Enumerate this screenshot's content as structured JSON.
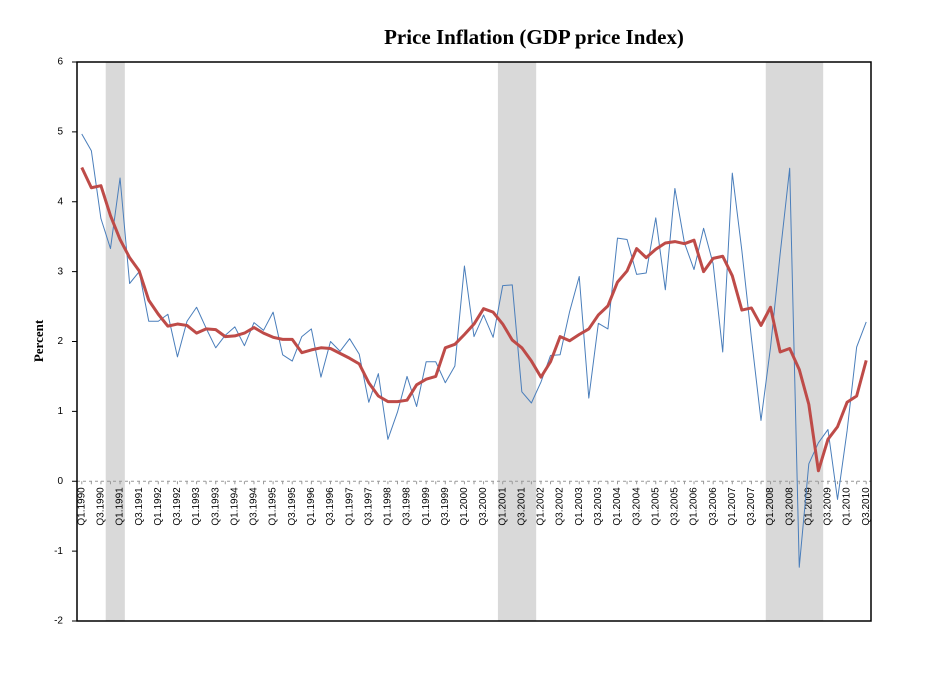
{
  "chart_data": {
    "type": "line",
    "title": "Price Inflation (GDP price Index)",
    "y_label": "Percent",
    "categories": [
      "Q1.1990",
      null,
      "Q3.1990",
      null,
      "Q1.1991",
      null,
      "Q3.1991",
      null,
      "Q1.1992",
      null,
      "Q3.1992",
      null,
      "Q1.1993",
      null,
      "Q3.1993",
      null,
      "Q1.1994",
      null,
      "Q3.1994",
      null,
      "Q1.1995",
      null,
      "Q3.1995",
      null,
      "Q1.1996",
      null,
      "Q3.1996",
      null,
      "Q1.1997",
      null,
      "Q3.1997",
      null,
      "Q1.1998",
      null,
      "Q3.1998",
      null,
      "Q1.1999",
      null,
      "Q3.1999",
      null,
      "Q1.2000",
      null,
      "Q3.2000",
      null,
      "Q1.2001",
      null,
      "Q3.2001",
      null,
      "Q1.2002",
      null,
      "Q3.2002",
      null,
      "Q1.2003",
      null,
      "Q3.2003",
      null,
      "Q1.2004",
      null,
      "Q3.2004",
      null,
      "Q1.2005",
      null,
      "Q3.2005",
      null,
      "Q1.2006",
      null,
      "Q3.2006",
      null,
      "Q1.2007",
      null,
      "Q3.2007",
      null,
      "Q1.2008",
      null,
      "Q3.2008",
      null,
      "Q1.2009",
      null,
      "Q3.2009",
      null,
      "Q1.2010",
      null,
      "Q3.2010"
    ],
    "series": [
      {
        "color": "#4a7ebb",
        "width": 1,
        "values": [
          4.97,
          4.73,
          3.76,
          3.33,
          4.34,
          2.83,
          3.0,
          2.29,
          2.29,
          2.39,
          1.78,
          2.29,
          2.49,
          2.19,
          1.91,
          2.09,
          2.21,
          1.94,
          2.27,
          2.16,
          2.42,
          1.81,
          1.72,
          2.07,
          2.18,
          1.49,
          2.0,
          1.86,
          2.04,
          1.82,
          1.13,
          1.54,
          0.6,
          0.99,
          1.5,
          1.07,
          1.71,
          1.71,
          1.41,
          1.65,
          3.08,
          2.07,
          2.38,
          2.06,
          2.8,
          2.81,
          1.28,
          1.12,
          1.42,
          1.8,
          1.81,
          2.43,
          2.93,
          1.19,
          2.26,
          2.18,
          3.48,
          3.46,
          2.96,
          2.98,
          3.77,
          2.74,
          4.19,
          3.41,
          3.03,
          3.62,
          3.11,
          1.85,
          4.41,
          3.3,
          2.05,
          0.87,
          1.92,
          3.25,
          4.48,
          -1.23,
          0.25,
          0.55,
          0.74,
          -0.26,
          0.72,
          1.92,
          2.28
        ]
      },
      {
        "color": "#be4b48",
        "width": 3,
        "values": [
          4.49,
          4.2,
          4.23,
          3.8,
          3.46,
          3.2,
          3.01,
          2.59,
          2.39,
          2.22,
          2.25,
          2.23,
          2.12,
          2.18,
          2.17,
          2.07,
          2.08,
          2.12,
          2.2,
          2.12,
          2.06,
          2.03,
          2.03,
          1.84,
          1.88,
          1.91,
          1.9,
          1.83,
          1.76,
          1.68,
          1.41,
          1.22,
          1.14,
          1.14,
          1.16,
          1.38,
          1.46,
          1.5,
          1.91,
          1.96,
          2.1,
          2.25,
          2.47,
          2.42,
          2.25,
          2.02,
          1.91,
          1.72,
          1.49,
          1.71,
          2.07,
          2.01,
          2.1,
          2.18,
          2.38,
          2.51,
          2.85,
          3.01,
          3.33,
          3.2,
          3.32,
          3.41,
          3.43,
          3.4,
          3.45,
          3.0,
          3.19,
          3.22,
          2.94,
          2.45,
          2.48,
          2.23,
          2.49,
          1.85,
          1.9,
          1.6,
          1.1,
          0.15,
          0.6,
          0.78,
          1.13,
          1.22,
          1.73
        ]
      }
    ],
    "shaded_periods": [
      {
        "from": 3,
        "to": 4
      },
      {
        "from": 44,
        "to": 47
      },
      {
        "from": 72,
        "to": 77
      }
    ],
    "shade_color": "#d9d9d9",
    "ylim": [
      -2,
      6
    ],
    "yticks": [
      -2,
      -1,
      0,
      1,
      2,
      3,
      4,
      5,
      6
    ]
  }
}
